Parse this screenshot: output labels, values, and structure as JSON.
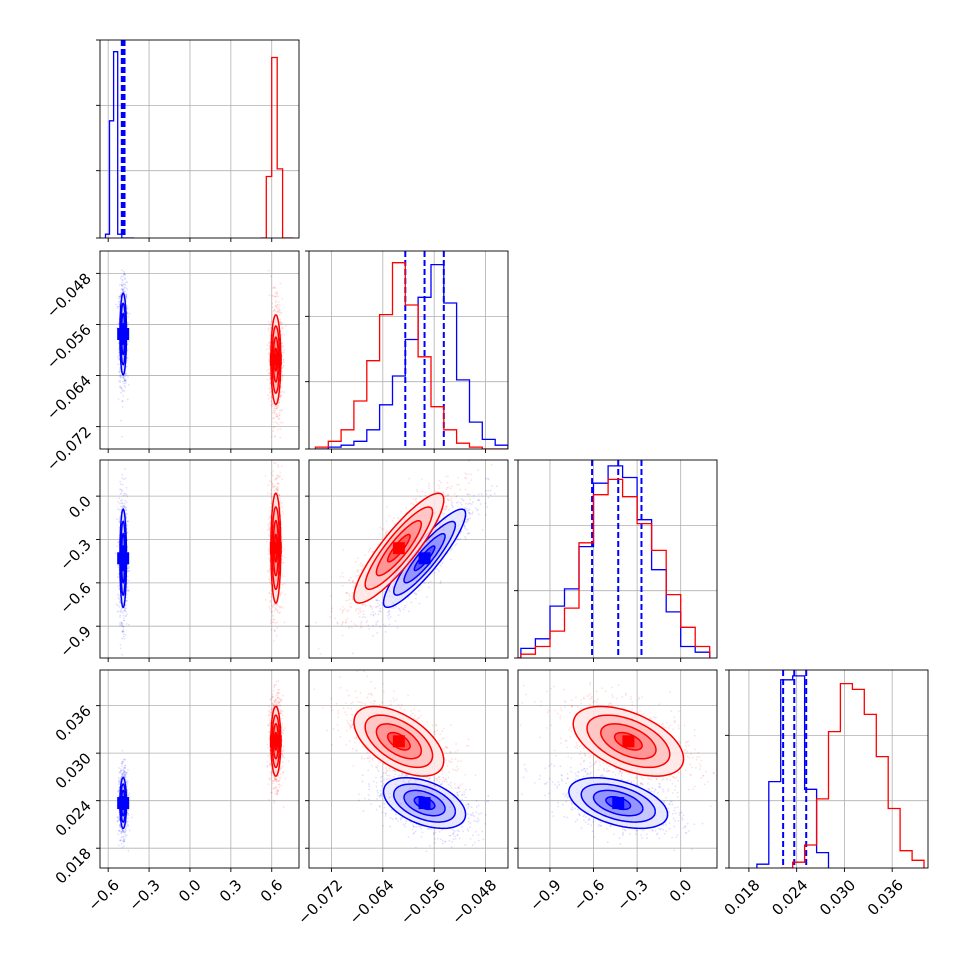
{
  "chart_data": {
    "type": "scatter",
    "layout": "corner",
    "n_params": 4,
    "grid": true,
    "series": [
      {
        "color": "#0000ff",
        "marginals": [
          {
            "edges": [
              -0.62,
              -0.59,
              -0.56,
              -0.53,
              -0.5,
              -0.47,
              -0.44,
              -0.41
            ],
            "counts": [
              0.02,
              0.61,
              0.97,
              0.02,
              0.0,
              0.0,
              0.0
            ]
          },
          {
            "edges": [
              -0.0745,
              -0.0725,
              -0.0705,
              -0.0685,
              -0.0665,
              -0.0645,
              -0.0625,
              -0.0605,
              -0.0585,
              -0.0565,
              -0.0545,
              -0.0525,
              -0.0505,
              -0.0485,
              -0.0465,
              -0.0445
            ],
            "counts": [
              0.0,
              0.01,
              0.02,
              0.04,
              0.1,
              0.23,
              0.38,
              0.57,
              0.79,
              0.96,
              0.76,
              0.36,
              0.14,
              0.05,
              0.02
            ]
          },
          {
            "edges": [
              -1.2,
              -1.1,
              -1.0,
              -0.9,
              -0.8,
              -0.7,
              -0.6,
              -0.5,
              -0.4,
              -0.3,
              -0.2,
              -0.1,
              0.0,
              0.1,
              0.2
            ],
            "counts": [
              0.0,
              0.05,
              0.1,
              0.27,
              0.36,
              0.58,
              0.91,
              1.0,
              0.94,
              0.72,
              0.46,
              0.24,
              0.06,
              0.03
            ]
          },
          {
            "edges": [
              0.019,
              0.0205,
              0.022,
              0.0235,
              0.025,
              0.0265,
              0.028
            ],
            "counts": [
              0.02,
              0.45,
              0.98,
              1.0,
              0.41,
              0.08
            ]
          }
        ],
        "quantiles": [
          [
            -0.5,
            -0.49,
            -0.48
          ],
          [
            -0.0605,
            -0.0575,
            -0.0545
          ],
          [
            -0.61,
            -0.43,
            -0.27
          ],
          [
            0.0223,
            0.0237,
            0.0252
          ]
        ],
        "pairs": [
          {
            "row": 1,
            "col": 0,
            "mean": [
              -0.49,
              -0.0575
            ],
            "sd": [
              0.012,
              0.0032
            ],
            "rho": 0.0
          },
          {
            "row": 2,
            "col": 0,
            "mean": [
              -0.49,
              -0.43
            ],
            "sd": [
              0.012,
              0.17
            ],
            "rho": 0.0
          },
          {
            "row": 2,
            "col": 1,
            "mean": [
              -0.0575,
              -0.43
            ],
            "sd": [
              0.0032,
              0.17
            ],
            "rho": 0.9
          },
          {
            "row": 3,
            "col": 0,
            "mean": [
              -0.49,
              0.0237
            ],
            "sd": [
              0.012,
              0.0016
            ],
            "rho": 0.0
          },
          {
            "row": 3,
            "col": 1,
            "mean": [
              -0.0575,
              0.0237
            ],
            "sd": [
              0.0032,
              0.0016
            ],
            "rho": -0.45
          },
          {
            "row": 3,
            "col": 2,
            "mean": [
              -0.43,
              0.0237
            ],
            "sd": [
              0.17,
              0.0016
            ],
            "rho": -0.45
          }
        ]
      },
      {
        "color": "#ff0000",
        "marginals": [
          {
            "edges": [
              0.52,
              0.56,
              0.6,
              0.64,
              0.68,
              0.72,
              0.76
            ],
            "counts": [
              0.0,
              0.32,
              0.94,
              0.36,
              0.0,
              0.0
            ]
          },
          {
            "edges": [
              -0.0745,
              -0.0725,
              -0.0705,
              -0.0685,
              -0.0665,
              -0.0645,
              -0.0625,
              -0.0605,
              -0.0585,
              -0.0565,
              -0.0545,
              -0.0525,
              -0.0505,
              -0.0485,
              -0.0465,
              -0.0445
            ],
            "counts": [
              0.01,
              0.04,
              0.1,
              0.25,
              0.46,
              0.7,
              0.97,
              0.75,
              0.48,
              0.22,
              0.1,
              0.03,
              0.01,
              0.0,
              0.0
            ]
          },
          {
            "edges": [
              -1.2,
              -1.1,
              -1.0,
              -0.9,
              -0.8,
              -0.7,
              -0.6,
              -0.5,
              -0.4,
              -0.3,
              -0.2,
              -0.1,
              0.0,
              0.1,
              0.2
            ],
            "counts": [
              0.0,
              0.02,
              0.06,
              0.14,
              0.26,
              0.6,
              0.85,
              0.93,
              0.84,
              0.7,
              0.56,
              0.33,
              0.16,
              0.06
            ]
          },
          {
            "edges": [
              0.022,
              0.0235,
              0.025,
              0.0265,
              0.028,
              0.0295,
              0.031,
              0.0325,
              0.034,
              0.0355,
              0.037,
              0.0385,
              0.04
            ],
            "counts": [
              0.0,
              0.03,
              0.12,
              0.36,
              0.71,
              0.96,
              0.93,
              0.8,
              0.58,
              0.31,
              0.09,
              0.04
            ]
          }
        ],
        "pairs": [
          {
            "row": 1,
            "col": 0,
            "mean": [
              0.63,
              -0.0615
            ],
            "sd": [
              0.018,
              0.0035
            ],
            "rho": 0.0
          },
          {
            "row": 2,
            "col": 0,
            "mean": [
              0.63,
              -0.36
            ],
            "sd": [
              0.018,
              0.19
            ],
            "rho": 0.0
          },
          {
            "row": 2,
            "col": 1,
            "mean": [
              -0.0615,
              -0.36
            ],
            "sd": [
              0.0035,
              0.19
            ],
            "rho": 0.88
          },
          {
            "row": 3,
            "col": 0,
            "mean": [
              0.63,
              0.0315
            ],
            "sd": [
              0.018,
              0.0022
            ],
            "rho": 0.0
          },
          {
            "row": 3,
            "col": 1,
            "mean": [
              -0.0615,
              0.0315
            ],
            "sd": [
              0.0035,
              0.0022
            ],
            "rho": -0.55
          },
          {
            "row": 3,
            "col": 2,
            "mean": [
              -0.36,
              0.0315
            ],
            "sd": [
              0.19,
              0.0022
            ],
            "rho": -0.5
          }
        ]
      }
    ],
    "params": [
      {
        "range": [
          -0.66,
          0.8
        ],
        "ticks": [
          -0.6,
          -0.3,
          0.0,
          0.3,
          0.6
        ],
        "tick_labels": [
          "−0.6",
          "−0.3",
          "0.0",
          "0.3",
          "0.6"
        ]
      },
      {
        "range": [
          -0.0755,
          -0.0445
        ],
        "ticks": [
          -0.072,
          -0.064,
          -0.056,
          -0.048
        ],
        "tick_labels": [
          "−0.072",
          "−0.064",
          "−0.056",
          "−0.048"
        ]
      },
      {
        "range": [
          -1.12,
          0.25
        ],
        "ticks": [
          -0.9,
          -0.6,
          -0.3,
          0.0
        ],
        "tick_labels": [
          "−0.9",
          "−0.6",
          "−0.3",
          "0.0"
        ]
      },
      {
        "range": [
          0.0155,
          0.0405
        ],
        "ticks": [
          0.018,
          0.024,
          0.03,
          0.036
        ],
        "tick_labels": [
          "0.018",
          "0.024",
          "0.030",
          "0.036"
        ]
      }
    ]
  }
}
